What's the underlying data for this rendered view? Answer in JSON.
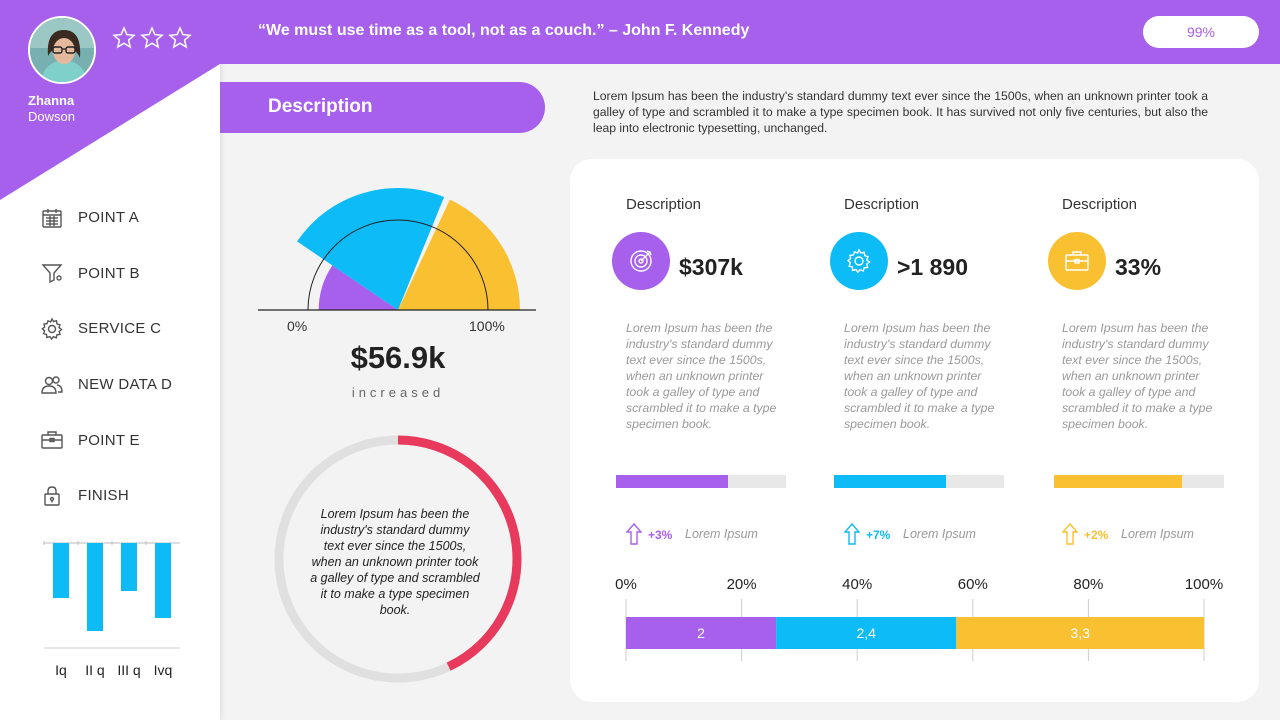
{
  "colors": {
    "purple": "#a760eb",
    "blue": "#0dbbf7",
    "yellow": "#f9c032",
    "red": "#e83a5c",
    "gray": "#e0e0e0"
  },
  "user": {
    "first_name": "Zhanna",
    "last_name": "Dowson",
    "avatar_icon": "avatar-photo",
    "rating_stars": 3
  },
  "menu": {
    "items": [
      {
        "label": "POINT A",
        "icon": "calendar-icon"
      },
      {
        "label": "POINT B",
        "icon": "funnel-icon"
      },
      {
        "label": "SERVICE C",
        "icon": "gear-icon"
      },
      {
        "label": "NEW DATA D",
        "icon": "users-icon"
      },
      {
        "label": "POINT E",
        "icon": "briefcase-icon"
      },
      {
        "label": "FINISH",
        "icon": "lock-icon"
      }
    ]
  },
  "header": {
    "quote": "“We must use time as a tool, not as a couch.” – John F. Kennedy",
    "percent_badge": "99%"
  },
  "section": {
    "title": "Description",
    "intro": "Lorem Ipsum has been the industry's standard dummy text ever since the 1500s, when an unknown printer took a galley of type and scrambled it to make a type specimen book. It has survived not only five centuries, but also the leap into electronic typesetting, unchanged."
  },
  "gauge": {
    "min_label": "0%",
    "max_label": "100%",
    "value": "$56.9k",
    "caption": "increased"
  },
  "donut": {
    "text": "Lorem Ipsum has been the industry's standard dummy text ever since the 1500s, when an unknown printer took a galley of type and scrambled it to make a type specimen book.",
    "fraction": 0.43
  },
  "kpis": [
    {
      "title": "Description",
      "value": "$307k",
      "icon": "target-icon",
      "color": "#a760eb",
      "text": "Lorem Ipsum has been the industry's standard dummy text ever since the 1500s, when an unknown printer took a galley of type and scrambled it to make a type specimen book.",
      "progress": 0.66,
      "delta": "+3%",
      "delta_label": "Lorem Ipsum"
    },
    {
      "title": "Description",
      "value": ">1 890",
      "icon": "gear-icon",
      "color": "#0dbbf7",
      "text": "Lorem Ipsum has been the industry's standard dummy text ever since the 1500s, when an unknown printer took a galley of type and scrambled it to make a type specimen book.",
      "progress": 0.66,
      "delta": "+7%",
      "delta_label": "Lorem Ipsum"
    },
    {
      "title": "Description",
      "value": "33%",
      "icon": "briefcase-icon",
      "color": "#f9c032",
      "text": "Lorem Ipsum has been the industry's standard dummy text ever since the 1500s, when an unknown printer took a galley of type and scrambled it to make a type specimen book.",
      "progress": 0.75,
      "delta": "+2%",
      "delta_label": "Lorem Ipsum"
    }
  ],
  "chart_data": [
    {
      "type": "pie",
      "variant": "semicircle-rose",
      "xlabel": "0%",
      "x2label": "100%",
      "slices": [
        {
          "value": 19,
          "radius": 0.65,
          "color": "#a760eb"
        },
        {
          "value": 45,
          "radius": 1.0,
          "color": "#0dbbf7"
        },
        {
          "value": 36,
          "radius": 1.0,
          "color": "#f9c032"
        }
      ]
    },
    {
      "type": "bar",
      "orientation": "vertical-down",
      "categories": [
        "Iq",
        "II q",
        "III q",
        "Ivq"
      ],
      "values": [
        -55,
        -88,
        -48,
        -75
      ],
      "ylim": [
        -100,
        0
      ],
      "color": "#0dbbf7"
    },
    {
      "type": "bar",
      "orientation": "horizontal-stacked-percent",
      "x_ticks": [
        "0%",
        "20%",
        "40%",
        "60%",
        "80%",
        "100%"
      ],
      "series": [
        {
          "value": 2,
          "label": "2",
          "color": "#a760eb"
        },
        {
          "value": 2.4,
          "label": "2,4",
          "color": "#0dbbf7"
        },
        {
          "value": 3.3,
          "label": "3,3",
          "color": "#f9c032"
        }
      ],
      "grid": true
    }
  ]
}
